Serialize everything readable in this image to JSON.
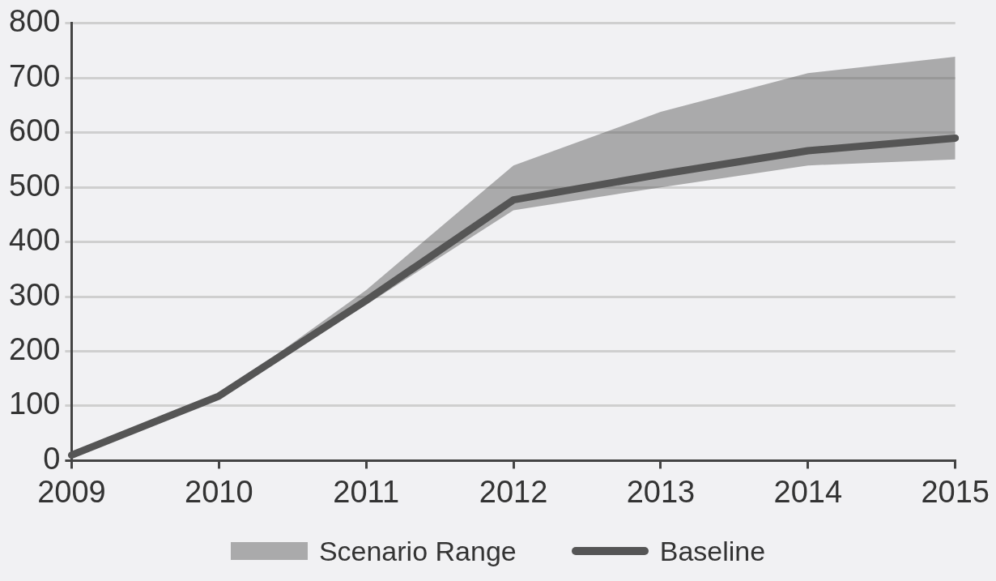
{
  "chart_data": {
    "type": "line",
    "categories": [
      "2009",
      "2010",
      "2011",
      "2012",
      "2013",
      "2014",
      "2015"
    ],
    "series": [
      {
        "name": "Baseline",
        "type": "line",
        "color": "#555555",
        "values": [
          10,
          118,
          293,
          477,
          524,
          567,
          590
        ],
        "lower": [
          10,
          118,
          285,
          458,
          500,
          540,
          551
        ],
        "upper": [
          10,
          118,
          312,
          540,
          638,
          709,
          739
        ]
      }
    ],
    "annotations": [
      "Scenario Range"
    ],
    "ylim": [
      0,
      800
    ],
    "yticks": [
      0,
      100,
      200,
      300,
      400,
      500,
      600,
      700,
      800
    ],
    "grid": "y",
    "legend": "bottom",
    "marker": "none",
    "line_style": "solid"
  }
}
